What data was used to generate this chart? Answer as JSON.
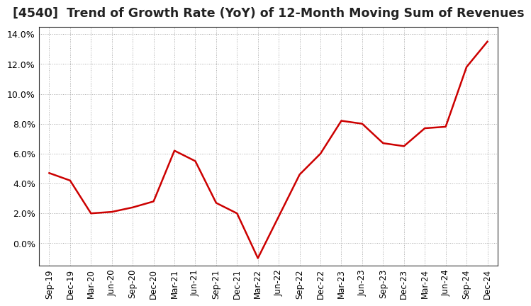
{
  "title": "[4540]  Trend of Growth Rate (YoY) of 12-Month Moving Sum of Revenues",
  "title_color": "#222222",
  "background_color": "#ffffff",
  "grid_color": "#aaaaaa",
  "line_color": "#cc0000",
  "ylim": [
    -0.015,
    0.145
  ],
  "yticks": [
    0.0,
    0.02,
    0.04,
    0.06,
    0.08,
    0.1,
    0.12,
    0.14
  ],
  "x_labels": [
    "Sep-19",
    "Dec-19",
    "Mar-20",
    "Jun-20",
    "Sep-20",
    "Dec-20",
    "Mar-21",
    "Jun-21",
    "Sep-21",
    "Dec-21",
    "Mar-22",
    "Jun-22",
    "Sep-22",
    "Dec-22",
    "Mar-23",
    "Jun-23",
    "Sep-23",
    "Dec-23",
    "Mar-24",
    "Jun-24",
    "Sep-24",
    "Dec-24"
  ],
  "values": [
    0.047,
    0.042,
    0.02,
    0.021,
    0.024,
    0.028,
    0.062,
    0.055,
    0.027,
    0.02,
    -0.01,
    0.018,
    0.046,
    0.06,
    0.082,
    0.08,
    0.067,
    0.065,
    0.077,
    0.078,
    0.118,
    0.135
  ]
}
